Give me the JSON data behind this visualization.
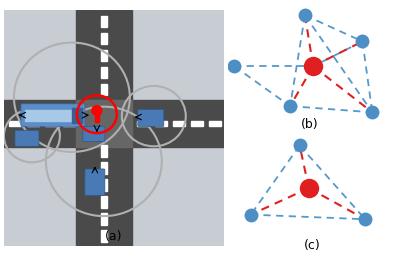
{
  "fig_width": 3.96,
  "fig_height": 2.62,
  "dpi": 100,
  "background_color": "#ffffff",
  "label_a": "(a)",
  "label_b": "(b)",
  "label_c": "(c)",
  "road_dark": "#4a4a4a",
  "road_medium": "#666666",
  "sidewalk_color": "#c8cdd4",
  "dash_color": "#ffffff",
  "graph_b": {
    "blue_node_color": "#4d8fc4",
    "red_node_color": "#e02020",
    "blue_edge_color": "#5599cc",
    "red_edge_color": "#dd2222"
  },
  "graph_c": {
    "blue_node_color": "#4d8fc4",
    "red_node_color": "#e02020",
    "blue_edge_color": "#5599cc",
    "red_edge_color": "#dd2222"
  }
}
